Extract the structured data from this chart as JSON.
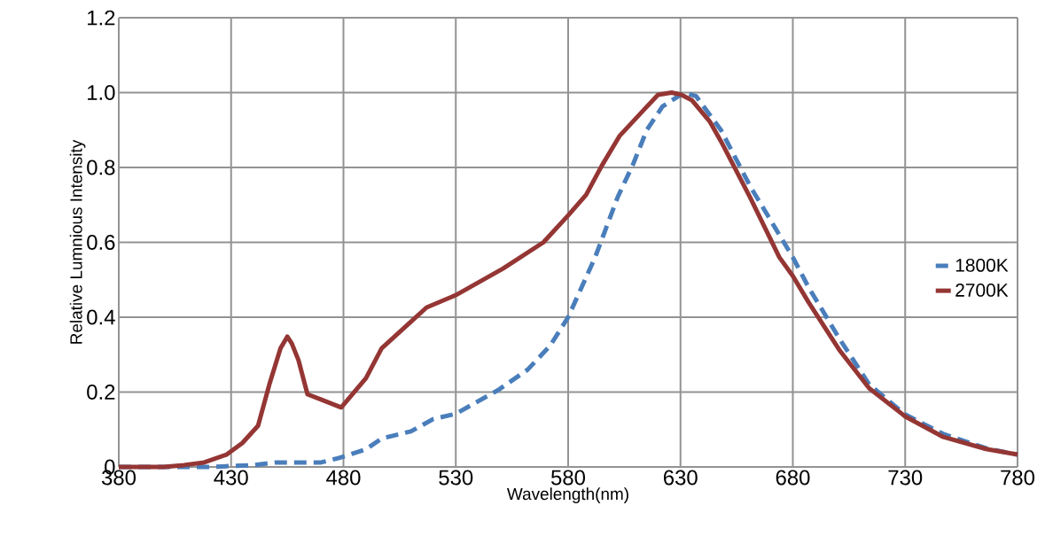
{
  "chart_data": {
    "type": "line",
    "xlabel": "Wavelength(nm)",
    "ylabel": "Relative Lumnious Intensity",
    "xlim": [
      380,
      780
    ],
    "ylim": [
      0,
      1.2
    ],
    "xticks": [
      380,
      430,
      480,
      530,
      580,
      630,
      680,
      730,
      780
    ],
    "yticks": [
      {
        "value": 0,
        "label": "0"
      },
      0.2,
      0.4,
      0.6,
      0.8,
      {
        "value": 1,
        "label": "1.0"
      },
      1.2
    ],
    "grid": true,
    "legend": "right",
    "marker": "none",
    "series": [
      {
        "name": "1800K",
        "color": "#4a7ebb",
        "line_style": "dashed",
        "x": [
          380,
          400,
          420,
          440,
          450,
          460,
          470,
          478,
          490,
          497,
          510,
          520,
          530,
          549,
          562,
          572,
          580,
          586,
          592,
          597,
          602,
          609,
          615,
          622,
          630,
          632,
          637,
          648,
          661,
          674,
          680,
          687,
          701,
          714,
          730,
          747,
          766,
          780
        ],
        "values": [
          0,
          0,
          0,
          0.005,
          0.012,
          0.012,
          0.012,
          0.024,
          0.047,
          0.076,
          0.095,
          0.128,
          0.142,
          0.206,
          0.26,
          0.324,
          0.4,
          0.48,
          0.56,
          0.64,
          0.72,
          0.81,
          0.9,
          0.963,
          0.994,
          1.0,
          0.99,
          0.9,
          0.75,
          0.62,
          0.56,
          0.48,
          0.34,
          0.22,
          0.14,
          0.088,
          0.05,
          0.033
        ]
      },
      {
        "name": "2700K",
        "color": "#943634",
        "line_style": "solid",
        "x": [
          380,
          400,
          409,
          418,
          428,
          435,
          442,
          447,
          452,
          455,
          457,
          460,
          464,
          470,
          479,
          490,
          497,
          510,
          517,
          530,
          551,
          569,
          580,
          588,
          595,
          603,
          614,
          620,
          626,
          630,
          635,
          643,
          648,
          661,
          674,
          680,
          687,
          701,
          714,
          730,
          747,
          766,
          780
        ],
        "values": [
          0,
          0,
          0.005,
          0.012,
          0.033,
          0.064,
          0.11,
          0.22,
          0.317,
          0.348,
          0.33,
          0.285,
          0.194,
          0.18,
          0.159,
          0.237,
          0.317,
          0.388,
          0.426,
          0.459,
          0.53,
          0.6,
          0.672,
          0.727,
          0.805,
          0.885,
          0.956,
          0.994,
          1.0,
          0.995,
          0.98,
          0.923,
          0.87,
          0.72,
          0.56,
          0.51,
          0.44,
          0.31,
          0.21,
          0.135,
          0.08,
          0.048,
          0.033
        ]
      }
    ]
  }
}
